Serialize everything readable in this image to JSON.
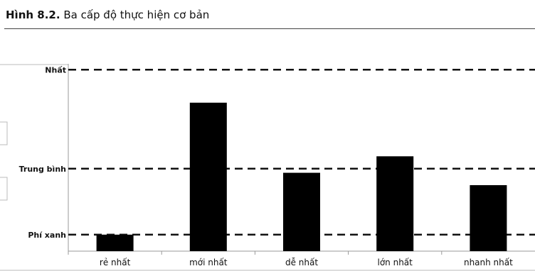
{
  "figure": {
    "number": "Hình 8.2.",
    "caption": "Ba cấp độ thực hiện cơ bản"
  },
  "chart_data": {
    "type": "bar",
    "categories": [
      "rẻ nhất",
      "mới nhất",
      "dễ nhất",
      "lớn nhất",
      "nhanh nhất"
    ],
    "values": [
      0.2,
      1.8,
      0.95,
      1.15,
      0.8
    ],
    "ylim": [
      0,
      2.4
    ],
    "levels": [
      {
        "label": "Phí xanh",
        "value": 0.2
      },
      {
        "label": "Trung bình",
        "value": 1.0
      },
      {
        "label": "Nhất",
        "value": 2.2
      }
    ],
    "bar_color": "#000000",
    "reference_line_style": "dashed",
    "grid": false,
    "legend": "none"
  }
}
